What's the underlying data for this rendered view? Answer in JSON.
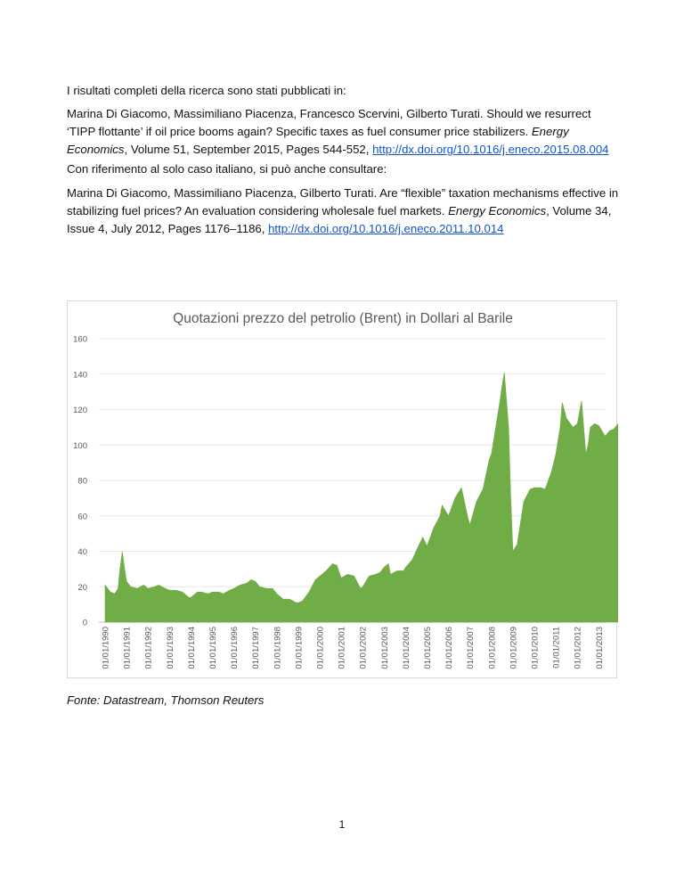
{
  "intro": "I risultati completi della ricerca sono stati pubblicati in:",
  "reference1": {
    "authors_title": "Marina Di Giacomo, Massimiliano Piacenza, Francesco Scervini, Gilberto Turati. Should we resurrect ‘TIPP flottante’ if oil price booms again? Specific taxes as fuel consumer price stabilizers.",
    "journal": "Energy Economics",
    "details": ", Volume 51, September 2015, Pages 544-552, ",
    "link": "http://dx.doi.org/10.1016/j.eneco.2015.08.004"
  },
  "intro2": "Con riferimento al solo caso italiano, si può anche consultare:",
  "reference2": {
    "authors_title": "Marina Di Giacomo, Massimiliano Piacenza, Gilberto Turati. Are “flexible” taxation mechanisms effective in stabilizing fuel prices? An evaluation considering wholesale fuel markets.",
    "journal": "Energy Economics",
    "details": ", Volume 34, Issue 4, July 2012, Pages 1176–1186, ",
    "link": "http://dx.doi.org/10.1016/j.eneco.2011.10.014"
  },
  "source_note": "Fonte: Datastream, Thomson Reuters",
  "page_number": "1",
  "chart_data": {
    "type": "area",
    "title": "Quotazioni prezzo del petrolio (Brent) in Dollari al Barile",
    "xlabel": "",
    "ylabel": "",
    "ylim": [
      0,
      160
    ],
    "yticks": [
      0,
      20,
      40,
      60,
      80,
      100,
      120,
      140,
      160
    ],
    "xlim": [
      1990.0,
      2014.3
    ],
    "grid": true,
    "legend": "none",
    "color": "#70ad47",
    "xtick_labels": [
      "01/01/1990",
      "01/01/1991",
      "01/01/1992",
      "01/01/1993",
      "01/01/1994",
      "01/01/1995",
      "01/01/1996",
      "01/01/1997",
      "01/01/1998",
      "01/01/1999",
      "01/01/2000",
      "01/01/2001",
      "01/01/2002",
      "01/01/2003",
      "01/01/2004",
      "01/01/2005",
      "01/01/2006",
      "01/01/2007",
      "01/01/2008",
      "01/01/2009",
      "01/01/2010",
      "01/01/2011",
      "01/01/2012",
      "01/01/2013"
    ],
    "series": [
      {
        "x": [
          1990.0,
          1990.25,
          1990.45,
          1990.6,
          1990.7,
          1990.8,
          1990.9,
          1991.0,
          1991.2,
          1991.5,
          1991.8,
          1992.0,
          1992.3,
          1992.5,
          1992.8,
          1993.0,
          1993.3,
          1993.6,
          1993.9,
          1994.0,
          1994.3,
          1994.5,
          1994.8,
          1995.0,
          1995.3,
          1995.5,
          1995.8,
          1996.0,
          1996.3,
          1996.6,
          1996.8,
          1997.0,
          1997.2,
          1997.5,
          1997.8,
          1998.0,
          1998.3,
          1998.6,
          1998.9,
          1999.0,
          1999.2,
          1999.5,
          1999.8,
          2000.0,
          2000.3,
          2000.6,
          2000.8,
          2001.0,
          2001.3,
          2001.6,
          2001.9,
          2002.0,
          2002.3,
          2002.6,
          2002.8,
          2003.0,
          2003.2,
          2003.3,
          2003.6,
          2003.9,
          2004.0,
          2004.3,
          2004.6,
          2004.8,
          2005.0,
          2005.3,
          2005.6,
          2005.7,
          2006.0,
          2006.3,
          2006.6,
          2006.9,
          2007.0,
          2007.3,
          2007.6,
          2007.9,
          2008.0,
          2008.2,
          2008.4,
          2008.5,
          2008.6,
          2008.8,
          2008.9,
          2009.0,
          2009.2,
          2009.5,
          2009.8,
          2010.0,
          2010.3,
          2010.5,
          2010.8,
          2011.0,
          2011.2,
          2011.3,
          2011.5,
          2011.8,
          2012.0,
          2012.2,
          2012.4,
          2012.5,
          2012.6,
          2012.8,
          2013.0,
          2013.3,
          2013.5,
          2013.7,
          2013.9,
          2014.1,
          2014.3
        ],
        "y": [
          21,
          17,
          16,
          19,
          31,
          40,
          31,
          23,
          20,
          19,
          21,
          19,
          20,
          21,
          19,
          18,
          18,
          17,
          14,
          14,
          17,
          17,
          16,
          17,
          17,
          16,
          18,
          19,
          21,
          22,
          24,
          23,
          20,
          19,
          19,
          16,
          13,
          13,
          11,
          11,
          12,
          17,
          24,
          26,
          29,
          33,
          32,
          25,
          27,
          26,
          19,
          20,
          26,
          27,
          28,
          31,
          33,
          27,
          29,
          29,
          31,
          35,
          43,
          48,
          43,
          53,
          60,
          66,
          60,
          70,
          76,
          59,
          55,
          68,
          75,
          92,
          95,
          110,
          125,
          134,
          141,
          110,
          70,
          40,
          44,
          68,
          75,
          76,
          76,
          75,
          85,
          95,
          110,
          124,
          115,
          110,
          112,
          125,
          95,
          100,
          110,
          112,
          111,
          105,
          108,
          109,
          112,
          108,
          110
        ]
      }
    ]
  }
}
